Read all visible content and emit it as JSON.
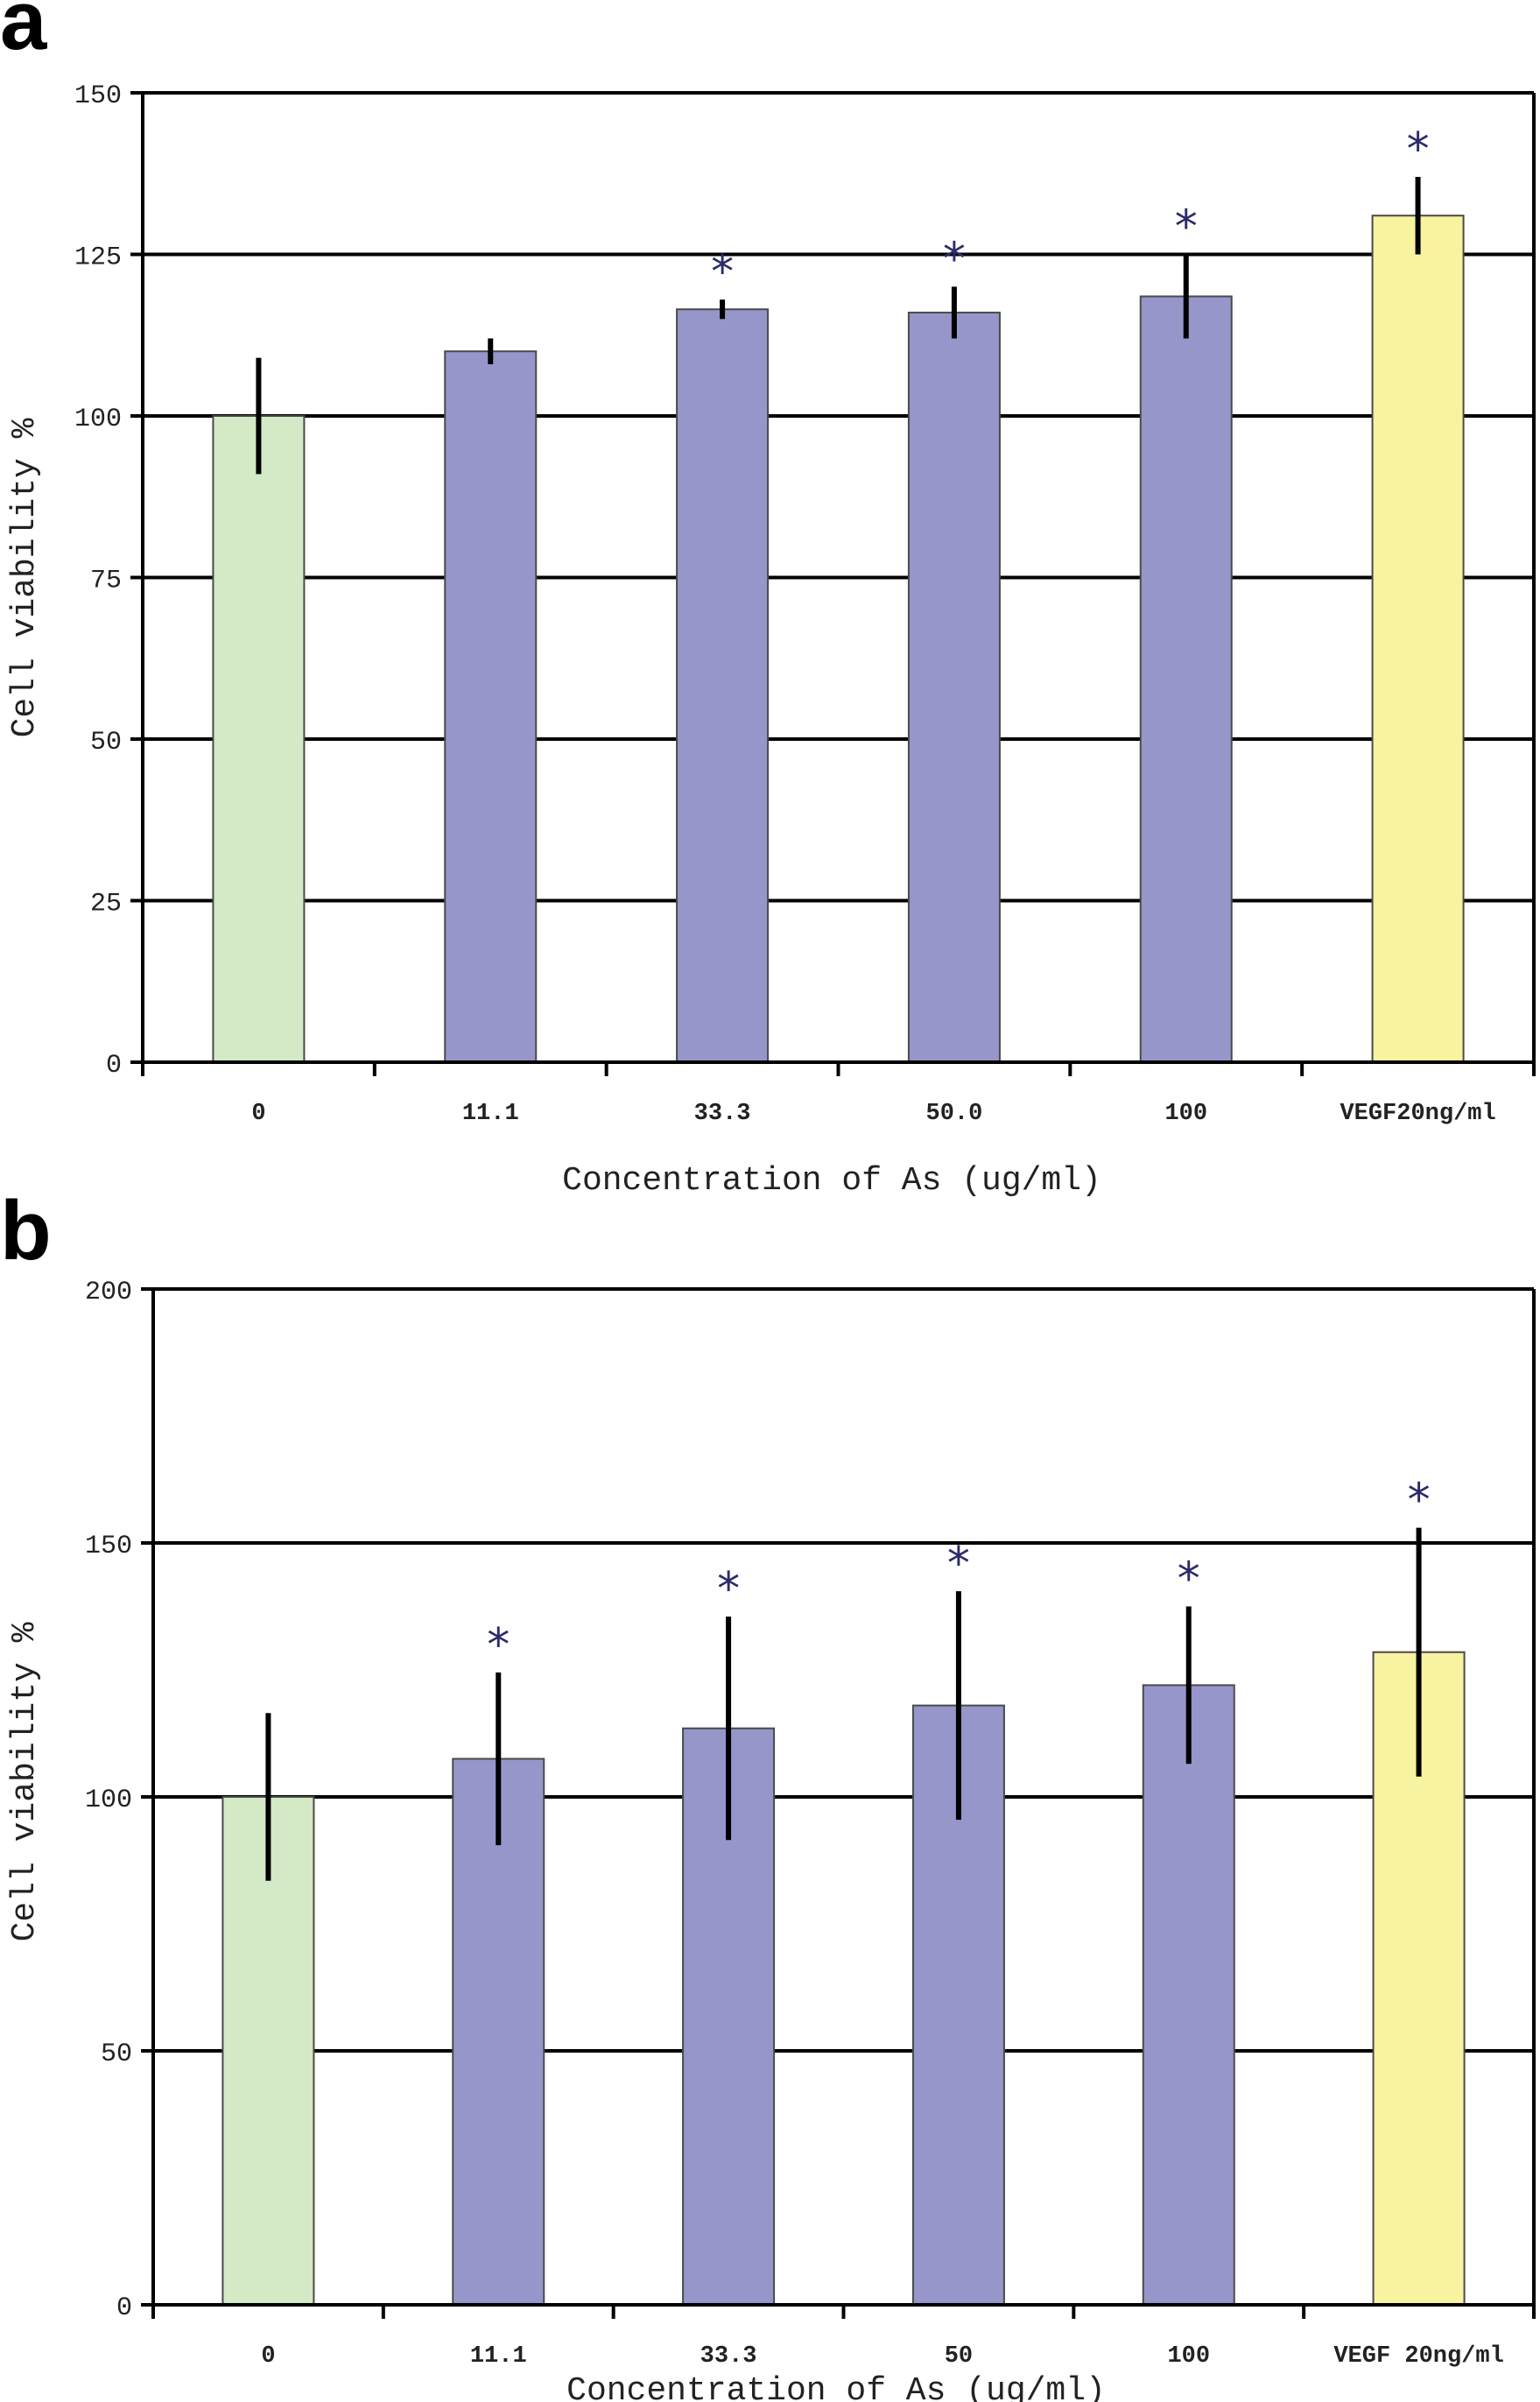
{
  "chart_data": [
    {
      "type": "bar",
      "panel": "a",
      "categories": [
        "0",
        "11.1",
        "33.3",
        "50.0",
        "100",
        "VEGF20ng/ml"
      ],
      "values": [
        100,
        110,
        116.5,
        116,
        118.5,
        131
      ],
      "errors": [
        9,
        2,
        1.5,
        4,
        6.5,
        6
      ],
      "significance": [
        "",
        "",
        "*",
        "*",
        "*",
        "*"
      ],
      "colors": [
        "#d4e9c5",
        "#9696cb",
        "#9696cb",
        "#9696cb",
        "#9696cb",
        "#f8f3a0"
      ],
      "ylim": [
        0,
        150
      ],
      "yticks": [
        0,
        25,
        50,
        75,
        100,
        125,
        150
      ],
      "ylabel": "Cell viability %",
      "xlabel": "Concentration of As (ug/ml)",
      "grid": true
    },
    {
      "type": "bar",
      "panel": "b",
      "categories": [
        "0",
        "11.1",
        "33.3",
        "50",
        "100",
        "VEGF 20ng/ml"
      ],
      "values": [
        100,
        107.5,
        113.5,
        118,
        122,
        128.5
      ],
      "errors": [
        16.5,
        17,
        22,
        22.5,
        15.5,
        24.5
      ],
      "significance": [
        "",
        "*",
        "*",
        "*",
        "*",
        "*"
      ],
      "colors": [
        "#d4e9c5",
        "#9696cb",
        "#9696cb",
        "#9696cb",
        "#9696cb",
        "#f8f3a0"
      ],
      "ylim": [
        0,
        200
      ],
      "yticks": [
        0,
        50,
        100,
        150,
        200
      ],
      "ylabel": "Cell viability %",
      "xlabel": "Concentration of As (ug/ml)",
      "grid": true
    }
  ]
}
